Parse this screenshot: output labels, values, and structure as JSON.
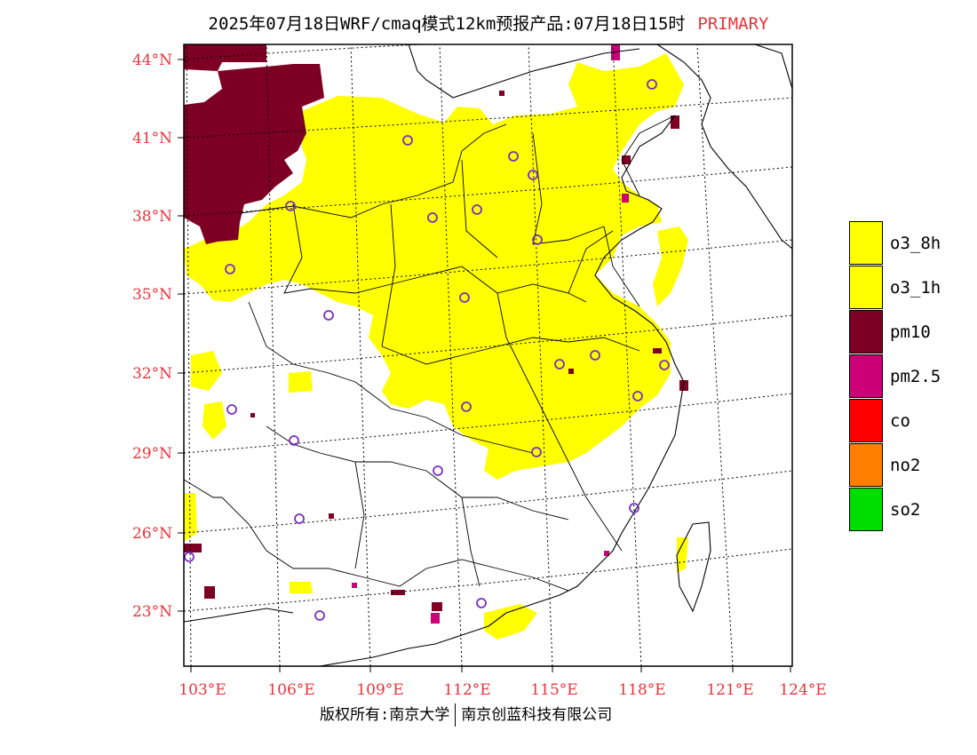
{
  "title": {
    "text": "2025年07月18日WRF/cmaq模式12km预报产品:07月18日15时",
    "tag": "PRIMARY"
  },
  "map": {
    "latitudes": [
      "44°N",
      "41°N",
      "38°N",
      "35°N",
      "32°N",
      "29°N",
      "26°N",
      "23°N"
    ],
    "longitudes": [
      "103°E",
      "106°E",
      "109°E",
      "112°E",
      "115°E",
      "118°E",
      "121°E",
      "124°E"
    ],
    "label_color": "#e8333a"
  },
  "legend": [
    {
      "label": "o3_8h",
      "color": "#ffff00"
    },
    {
      "label": "o3_1h",
      "color": "#ffff00"
    },
    {
      "label": "pm10",
      "color": "#7d0024"
    },
    {
      "label": "pm2.5",
      "color": "#cc0077"
    },
    {
      "label": "co",
      "color": "#ff0000"
    },
    {
      "label": "no2",
      "color": "#ff8000"
    },
    {
      "label": "so2",
      "color": "#00dd00"
    }
  ],
  "footer": {
    "left": "版权所有:南京大学",
    "right": "南京创蓝科技有限公司"
  }
}
